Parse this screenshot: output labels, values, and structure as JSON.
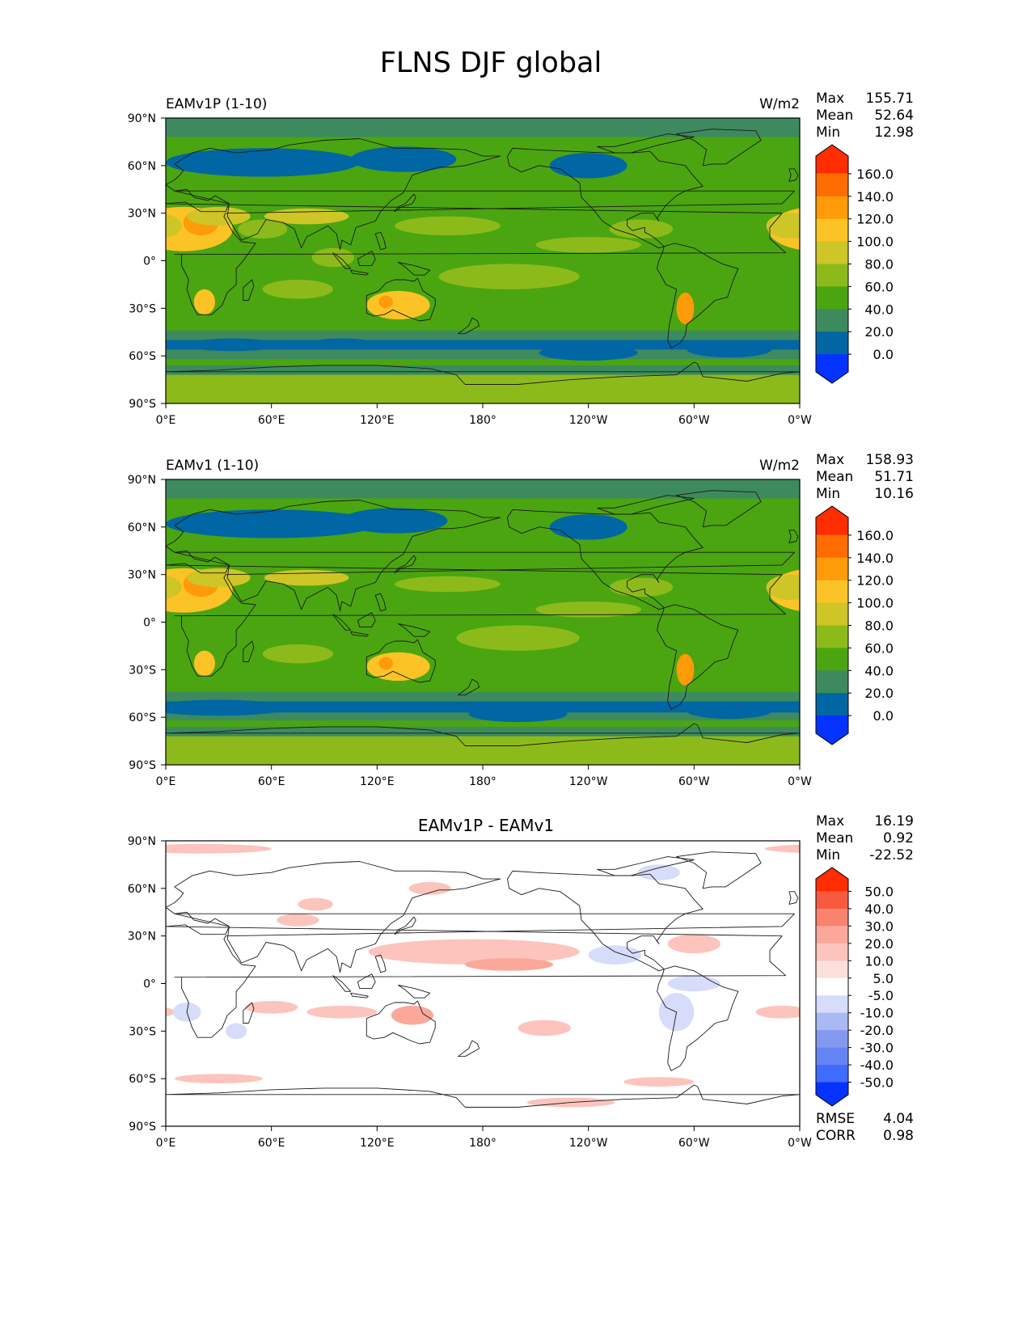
{
  "figure": {
    "title": "FLNS DJF global"
  },
  "colors": {
    "levels": [
      "#0433ff",
      "#0166a4",
      "#3d8a5f",
      "#4aa511",
      "#8dba1b",
      "#cec526",
      "#fbc326",
      "#ff9a08",
      "#ff6c01",
      "#ff2d00"
    ],
    "diff_levels": [
      "#0433ff",
      "#3f6bff",
      "#6685f5",
      "#8399ef",
      "#aab8f3",
      "#d6dcfa",
      "#ffffff",
      "#fde0dc",
      "#fcc4bc",
      "#fba89b",
      "#f9836f",
      "#f85a3f",
      "#ff2d00"
    ],
    "coast": "#1a1a1a"
  },
  "axes": {
    "yticks": [
      "90°N",
      "60°N",
      "30°N",
      "0°",
      "30°S",
      "60°S",
      "90°S"
    ],
    "xticks": [
      "0°E",
      "60°E",
      "120°E",
      "180°",
      "120°W",
      "60°W",
      "0°W"
    ]
  },
  "stats_labels": {
    "max": "Max",
    "mean": "Mean",
    "min": "Min",
    "rmse": "RMSE",
    "corr": "CORR"
  },
  "chart_data": [
    {
      "type": "heatmap",
      "title": "EAMv1P (1-10)",
      "units": "W/m2",
      "xlim": [
        0,
        360
      ],
      "ylim": [
        -90,
        90
      ],
      "stats": {
        "max": "155.71",
        "mean": "52.64",
        "min": "12.98"
      },
      "colorbar_ticks": [
        "160.0",
        "140.0",
        "120.0",
        "100.0",
        "80.0",
        "60.0",
        "40.0",
        "20.0",
        "0.0"
      ],
      "contour_levels": [
        0,
        20,
        40,
        60,
        80,
        100,
        120,
        140,
        160
      ]
    },
    {
      "type": "heatmap",
      "title": "EAMv1 (1-10)",
      "units": "W/m2",
      "xlim": [
        0,
        360
      ],
      "ylim": [
        -90,
        90
      ],
      "stats": {
        "max": "158.93",
        "mean": "51.71",
        "min": "10.16"
      },
      "colorbar_ticks": [
        "160.0",
        "140.0",
        "120.0",
        "100.0",
        "80.0",
        "60.0",
        "40.0",
        "20.0",
        "0.0"
      ],
      "contour_levels": [
        0,
        20,
        40,
        60,
        80,
        100,
        120,
        140,
        160
      ]
    },
    {
      "type": "heatmap",
      "title": "EAMv1P - EAMv1",
      "units": "",
      "xlim": [
        0,
        360
      ],
      "ylim": [
        -90,
        90
      ],
      "stats": {
        "max": "16.19",
        "mean": "0.92",
        "min": "-22.52",
        "rmse": "4.04",
        "corr": "0.98"
      },
      "colorbar_ticks": [
        "50.0",
        "40.0",
        "30.0",
        "20.0",
        "10.0",
        "5.0",
        "-5.0",
        "-10.0",
        "-20.0",
        "-30.0",
        "-40.0",
        "-50.0"
      ],
      "contour_levels": [
        -50,
        -40,
        -30,
        -20,
        -10,
        -5,
        5,
        10,
        20,
        30,
        40,
        50
      ]
    }
  ]
}
